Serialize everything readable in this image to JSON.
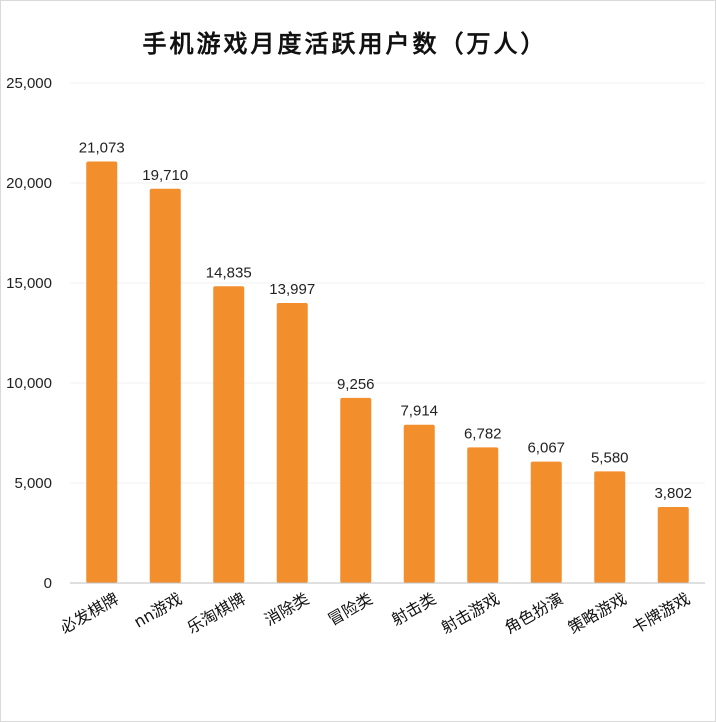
{
  "chart_data": {
    "type": "bar",
    "title": "手机游戏月度活跃用户数（万人）",
    "categories": [
      "必发棋牌",
      "nn游戏",
      "乐淘棋牌",
      "消除类",
      "冒险类",
      "射击类",
      "射击游戏",
      "角色扮演",
      "策略游戏",
      "卡牌游戏"
    ],
    "values": [
      21073,
      19710,
      14835,
      13997,
      9256,
      7914,
      6782,
      6067,
      5580,
      3802
    ],
    "value_labels": [
      "21,073",
      "19,710",
      "14,835",
      "13,997",
      "9,256",
      "7,914",
      "6,782",
      "6,067",
      "5,580",
      "3,802"
    ],
    "ylim": [
      0,
      25000
    ],
    "yticks": [
      0,
      5000,
      10000,
      15000,
      20000,
      25000
    ],
    "ytick_labels": [
      "0",
      "5,000",
      "10,000",
      "15,000",
      "20,000",
      "25,000"
    ],
    "xlabel": "",
    "ylabel": "",
    "grid": true,
    "bar_color": "#f28e2b",
    "legend": "none"
  }
}
